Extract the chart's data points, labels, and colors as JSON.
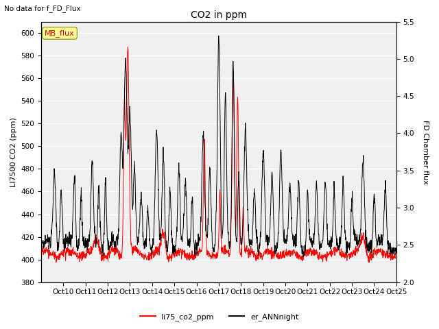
{
  "title": "CO2 in ppm",
  "subtitle": "No data for f_FD_Flux",
  "ylabel_left": "LI7500 CO2 (ppm)",
  "ylabel_right": "FD Chamber flux",
  "ylim_left": [
    380,
    610
  ],
  "ylim_right": [
    2.0,
    5.5
  ],
  "yticks_left": [
    380,
    400,
    420,
    440,
    460,
    480,
    500,
    520,
    540,
    560,
    580,
    600
  ],
  "yticks_right": [
    2.0,
    2.5,
    3.0,
    3.5,
    4.0,
    4.5,
    5.0,
    5.5
  ],
  "xlabel_ticks": [
    "Oct 10",
    "Oct 11",
    "Oct 12",
    "Oct 13",
    "Oct 14",
    "Oct 15",
    "Oct 16",
    "Oct 17",
    "Oct 18",
    "Oct 19",
    "Oct 20",
    "Oct 21",
    "Oct 22",
    "Oct 23",
    "Oct 24",
    "Oct 25"
  ],
  "legend_label1": "li75_co2_ppm",
  "legend_label2": "er_ANNnight",
  "color_co2": "#ff0000",
  "color_ann": "#000000",
  "background_color": "#f0f0f0",
  "mb_flux_box_color": "#ffff99",
  "mb_flux_text_color": "#cc0000",
  "grid_color": "#ffffff"
}
